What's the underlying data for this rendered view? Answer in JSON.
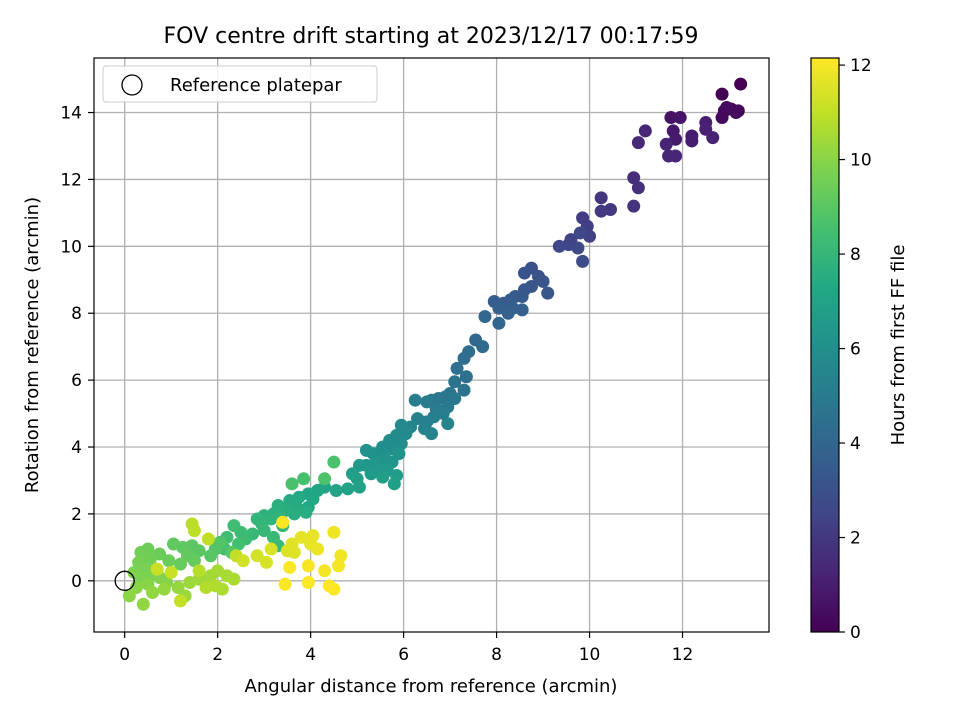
{
  "chart_data": {
    "type": "scatter",
    "title": "FOV centre drift starting at 2023/12/17 00:17:59",
    "xlabel": "Angular distance from reference (arcmin)",
    "ylabel": "Rotation from reference (arcmin)",
    "xlim": [
      -0.66,
      13.86
    ],
    "ylim": [
      -1.53,
      15.63
    ],
    "xticks": [
      0,
      2,
      4,
      6,
      8,
      10,
      12
    ],
    "yticks": [
      0,
      2,
      4,
      6,
      8,
      10,
      12,
      14
    ],
    "grid": true,
    "legend": {
      "placement": "upper-left",
      "entries": [
        {
          "label": "Reference platepar",
          "marker": "open-circle"
        }
      ]
    },
    "reference_point": {
      "x": 0,
      "y": 0
    },
    "colorbar": {
      "label": "Hours from first FF file",
      "colormap": "viridis",
      "range": [
        0,
        12.15
      ],
      "ticks": [
        0,
        2,
        4,
        6,
        8,
        10,
        12
      ]
    },
    "series": [
      {
        "columns": [
          "x",
          "y",
          "hours"
        ],
        "points": [
          [
            13.25,
            14.85,
            0.0
          ],
          [
            12.85,
            14.55,
            0.05
          ],
          [
            13.05,
            14.1,
            0.1
          ],
          [
            13.2,
            14.05,
            0.15
          ],
          [
            12.9,
            14.05,
            0.2
          ],
          [
            12.85,
            13.85,
            0.25
          ],
          [
            13.15,
            14.0,
            0.3
          ],
          [
            12.95,
            14.15,
            0.35
          ],
          [
            11.75,
            13.85,
            0.6
          ],
          [
            11.95,
            13.85,
            0.7
          ],
          [
            11.8,
            13.45,
            0.8
          ],
          [
            11.85,
            13.2,
            0.9
          ],
          [
            12.2,
            13.3,
            0.95
          ],
          [
            12.2,
            13.15,
            1.0
          ],
          [
            12.5,
            13.7,
            1.05
          ],
          [
            12.5,
            13.5,
            1.1
          ],
          [
            12.65,
            13.25,
            1.15
          ],
          [
            11.65,
            13.05,
            1.2
          ],
          [
            11.85,
            12.7,
            1.25
          ],
          [
            11.7,
            12.7,
            1.3
          ],
          [
            11.2,
            13.45,
            1.35
          ],
          [
            11.05,
            13.1,
            1.4
          ],
          [
            10.95,
            12.05,
            1.6
          ],
          [
            11.05,
            11.75,
            1.7
          ],
          [
            10.95,
            11.2,
            1.8
          ],
          [
            10.25,
            11.45,
            1.9
          ],
          [
            10.45,
            11.1,
            2.0
          ],
          [
            10.25,
            11.05,
            2.05
          ],
          [
            9.85,
            10.85,
            2.15
          ],
          [
            9.95,
            10.6,
            2.2
          ],
          [
            10.0,
            10.3,
            2.3
          ],
          [
            9.6,
            10.2,
            2.4
          ],
          [
            9.55,
            10.05,
            2.5
          ],
          [
            9.35,
            10.0,
            2.55
          ],
          [
            9.8,
            10.4,
            2.6
          ],
          [
            9.75,
            9.95,
            2.7
          ],
          [
            9.85,
            9.55,
            2.75
          ],
          [
            8.75,
            9.35,
            3.0
          ],
          [
            8.9,
            9.1,
            3.1
          ],
          [
            8.6,
            9.2,
            3.15
          ],
          [
            9.0,
            8.95,
            3.2
          ],
          [
            8.75,
            8.8,
            3.25
          ],
          [
            8.6,
            8.7,
            3.3
          ],
          [
            9.1,
            8.6,
            3.35
          ],
          [
            8.55,
            8.5,
            3.4
          ],
          [
            8.4,
            8.5,
            3.45
          ],
          [
            8.3,
            8.4,
            3.5
          ],
          [
            8.15,
            8.3,
            3.55
          ],
          [
            7.95,
            8.35,
            3.6
          ],
          [
            8.05,
            8.15,
            3.65
          ],
          [
            8.35,
            8.15,
            3.7
          ],
          [
            8.55,
            8.1,
            3.75
          ],
          [
            8.25,
            8.0,
            3.8
          ],
          [
            7.75,
            7.9,
            4.0
          ],
          [
            8.05,
            7.7,
            4.05
          ],
          [
            7.55,
            7.2,
            4.15
          ],
          [
            7.7,
            7.0,
            4.2
          ],
          [
            7.4,
            6.85,
            4.3
          ],
          [
            7.3,
            6.65,
            4.35
          ],
          [
            7.15,
            6.35,
            4.45
          ],
          [
            7.35,
            6.1,
            4.5
          ],
          [
            7.1,
            5.95,
            4.6
          ],
          [
            7.3,
            5.7,
            4.65
          ],
          [
            7.0,
            5.6,
            4.7
          ],
          [
            6.9,
            5.5,
            4.75
          ],
          [
            6.75,
            5.45,
            4.8
          ],
          [
            6.6,
            5.4,
            4.85
          ],
          [
            7.1,
            5.45,
            4.9
          ],
          [
            6.95,
            5.2,
            4.95
          ],
          [
            6.7,
            5.15,
            5.0
          ],
          [
            6.5,
            5.35,
            5.05
          ],
          [
            6.25,
            5.4,
            5.1
          ],
          [
            6.85,
            5.0,
            5.15
          ],
          [
            6.65,
            4.9,
            5.2
          ],
          [
            6.5,
            4.75,
            5.25
          ],
          [
            6.3,
            4.85,
            5.3
          ],
          [
            6.45,
            4.55,
            5.35
          ],
          [
            6.6,
            4.4,
            5.4
          ],
          [
            6.95,
            4.7,
            5.45
          ],
          [
            6.15,
            4.6,
            5.5
          ],
          [
            5.95,
            4.65,
            5.7
          ],
          [
            6.05,
            4.4,
            5.75
          ],
          [
            5.85,
            4.35,
            5.8
          ],
          [
            5.7,
            4.2,
            5.85
          ],
          [
            5.95,
            4.1,
            5.9
          ],
          [
            5.55,
            4.0,
            5.95
          ],
          [
            5.75,
            3.95,
            6.0
          ],
          [
            5.5,
            3.85,
            6.05
          ],
          [
            5.35,
            3.8,
            6.1
          ],
          [
            5.2,
            3.9,
            6.15
          ],
          [
            5.9,
            3.8,
            6.2
          ],
          [
            5.6,
            3.65,
            6.25
          ],
          [
            5.75,
            3.55,
            6.3
          ],
          [
            5.4,
            3.55,
            6.35
          ],
          [
            5.2,
            3.45,
            6.4
          ],
          [
            5.05,
            3.45,
            6.45
          ],
          [
            5.45,
            3.35,
            6.5
          ],
          [
            5.65,
            3.3,
            6.55
          ],
          [
            5.3,
            3.2,
            6.6
          ],
          [
            5.85,
            3.15,
            6.65
          ],
          [
            5.55,
            3.1,
            6.7
          ],
          [
            5.0,
            3.05,
            6.75
          ],
          [
            4.9,
            3.2,
            6.8
          ],
          [
            5.8,
            2.9,
            6.85
          ],
          [
            5.05,
            2.8,
            6.9
          ],
          [
            4.8,
            2.75,
            6.95
          ],
          [
            4.55,
            2.7,
            7.0
          ],
          [
            4.3,
            2.8,
            7.05
          ],
          [
            4.15,
            2.7,
            7.15
          ],
          [
            3.95,
            2.6,
            7.2
          ],
          [
            4.05,
            2.45,
            7.25
          ],
          [
            3.95,
            2.2,
            7.3
          ],
          [
            3.75,
            2.5,
            7.35
          ],
          [
            3.55,
            2.4,
            7.4
          ],
          [
            3.7,
            2.2,
            7.45
          ],
          [
            3.9,
            2.05,
            7.5
          ],
          [
            3.65,
            2.0,
            7.55
          ],
          [
            3.45,
            2.1,
            7.6
          ],
          [
            3.3,
            2.25,
            7.65
          ],
          [
            3.2,
            2.0,
            7.7
          ],
          [
            3.0,
            1.95,
            7.75
          ],
          [
            3.35,
            1.9,
            7.8
          ],
          [
            3.15,
            1.85,
            7.85
          ],
          [
            2.85,
            1.85,
            7.9
          ],
          [
            2.95,
            1.7,
            7.95
          ],
          [
            3.4,
            1.65,
            8.0
          ],
          [
            3.0,
            1.5,
            8.05
          ],
          [
            2.75,
            1.4,
            8.1
          ],
          [
            3.2,
            1.3,
            8.15
          ],
          [
            3.3,
            1.05,
            8.2
          ],
          [
            2.6,
            1.25,
            8.25
          ],
          [
            2.5,
            1.45,
            8.3
          ],
          [
            2.35,
            1.65,
            8.35
          ],
          [
            2.2,
            1.3,
            8.4
          ],
          [
            2.45,
            1.1,
            8.45
          ],
          [
            2.15,
            0.95,
            8.5
          ],
          [
            3.85,
            3.05,
            8.55
          ],
          [
            3.6,
            2.9,
            8.6
          ],
          [
            4.5,
            3.55,
            8.65
          ],
          [
            4.3,
            3.05,
            8.7
          ],
          [
            2.05,
            1.15,
            8.8
          ],
          [
            1.95,
            0.95,
            8.85
          ],
          [
            2.3,
            0.85,
            8.9
          ],
          [
            1.85,
            0.75,
            8.95
          ],
          [
            1.6,
            0.9,
            9.0
          ],
          [
            1.45,
            1.05,
            9.05
          ],
          [
            1.25,
            1.0,
            9.1
          ],
          [
            1.05,
            1.1,
            9.15
          ],
          [
            1.35,
            0.75,
            9.2
          ],
          [
            1.5,
            0.6,
            9.25
          ],
          [
            1.2,
            0.5,
            9.3
          ],
          [
            0.95,
            0.6,
            9.35
          ],
          [
            0.75,
            0.8,
            9.4
          ],
          [
            0.5,
            0.95,
            9.45
          ],
          [
            0.35,
            0.85,
            9.5
          ],
          [
            0.55,
            0.65,
            9.55
          ],
          [
            0.3,
            0.55,
            9.6
          ],
          [
            0.45,
            0.35,
            9.65
          ],
          [
            0.6,
            0.2,
            9.7
          ],
          [
            0.35,
            0.1,
            9.75
          ],
          [
            0.2,
            0.25,
            9.8
          ],
          [
            0.75,
            0.1,
            9.85
          ],
          [
            0.9,
            -0.05,
            9.9
          ],
          [
            0.5,
            -0.1,
            9.95
          ],
          [
            0.25,
            -0.2,
            10.0
          ],
          [
            0.1,
            -0.45,
            10.05
          ],
          [
            0.4,
            -0.7,
            10.1
          ],
          [
            0.6,
            -0.35,
            10.15
          ],
          [
            0.85,
            -0.25,
            10.2
          ],
          [
            1.15,
            -0.2,
            10.25
          ],
          [
            1.3,
            -0.45,
            10.3
          ],
          [
            1.4,
            -0.05,
            10.35
          ],
          [
            1.6,
            0.05,
            10.4
          ],
          [
            1.85,
            0.15,
            10.45
          ],
          [
            2.0,
            0.3,
            10.5
          ],
          [
            2.2,
            0.15,
            10.55
          ],
          [
            2.35,
            0.05,
            10.6
          ],
          [
            2.1,
            -0.25,
            10.65
          ],
          [
            1.95,
            -0.15,
            10.7
          ],
          [
            1.75,
            -0.2,
            10.75
          ],
          [
            1.6,
            0.3,
            10.8
          ],
          [
            1.45,
            1.7,
            10.85
          ],
          [
            1.5,
            1.5,
            10.9
          ],
          [
            1.8,
            1.25,
            10.95
          ],
          [
            2.4,
            0.75,
            11.0
          ],
          [
            1.2,
            -0.6,
            11.05
          ],
          [
            1.0,
            0.25,
            11.1
          ],
          [
            0.7,
            0.35,
            11.15
          ],
          [
            2.55,
            0.6,
            11.3
          ],
          [
            2.85,
            0.75,
            11.35
          ],
          [
            3.05,
            0.55,
            11.4
          ],
          [
            3.15,
            0.95,
            11.45
          ],
          [
            3.5,
            0.9,
            11.5
          ],
          [
            3.65,
            0.85,
            11.55
          ],
          [
            3.6,
            1.1,
            11.6
          ],
          [
            3.8,
            1.3,
            11.65
          ],
          [
            4.0,
            1.1,
            11.7
          ],
          [
            4.05,
            1.35,
            11.75
          ],
          [
            4.15,
            0.95,
            11.8
          ],
          [
            4.5,
            1.45,
            11.85
          ],
          [
            4.65,
            0.75,
            11.9
          ],
          [
            4.6,
            0.45,
            11.95
          ],
          [
            4.3,
            0.3,
            12.0
          ],
          [
            3.95,
            0.45,
            12.05
          ],
          [
            3.55,
            0.4,
            12.1
          ],
          [
            3.45,
            -0.1,
            12.1
          ],
          [
            3.95,
            -0.05,
            12.1
          ],
          [
            4.4,
            -0.15,
            12.15
          ],
          [
            4.5,
            -0.25,
            12.15
          ],
          [
            3.4,
            1.75,
            12.15
          ]
        ]
      }
    ]
  }
}
